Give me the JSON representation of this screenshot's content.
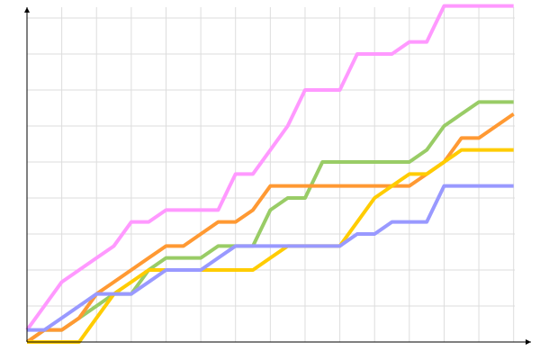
{
  "chart_data": {
    "type": "line",
    "x": [
      0,
      1,
      2,
      3,
      4,
      5,
      6,
      7,
      8,
      9,
      10,
      11,
      12,
      13,
      14,
      15,
      16,
      17,
      18,
      19,
      20,
      21,
      22,
      23,
      24,
      25,
      26,
      27,
      28
    ],
    "xlim": [
      0,
      29
    ],
    "ylim": [
      0,
      28.5
    ],
    "xgrid": [
      0,
      2,
      4,
      6,
      8,
      10,
      12,
      14,
      16,
      18,
      20,
      22,
      24,
      26,
      28
    ],
    "ygrid": [
      3,
      6,
      9,
      12,
      15,
      18,
      21,
      24,
      27
    ],
    "grid": true,
    "series": [
      {
        "color": "#ff99ff",
        "values": [
          1,
          3,
          5,
          6,
          7,
          8,
          10,
          10,
          11,
          11,
          11,
          11,
          14,
          14,
          16,
          18,
          21,
          21,
          21,
          24,
          24,
          24,
          25,
          25,
          28,
          28,
          28,
          28,
          28
        ]
      },
      {
        "color": "#99cc66",
        "values": [
          0,
          1,
          1,
          2,
          3,
          4,
          4,
          6,
          7,
          7,
          7,
          8,
          8,
          8,
          11,
          12,
          12,
          15,
          15,
          15,
          15,
          15,
          15,
          16,
          18,
          19,
          20,
          20,
          20
        ]
      },
      {
        "color": "#ff9933",
        "values": [
          0,
          1,
          1,
          2,
          4,
          5,
          6,
          7,
          8,
          8,
          9,
          10,
          10,
          11,
          13,
          13,
          13,
          13,
          13,
          13,
          13,
          13,
          13,
          14,
          15,
          17,
          17,
          18,
          19
        ]
      },
      {
        "color": "#ffcc00",
        "values": [
          0,
          0,
          0,
          0,
          2,
          4,
          5,
          6,
          6,
          6,
          6,
          6,
          6,
          6,
          7,
          8,
          8,
          8,
          8,
          10,
          12,
          13,
          14,
          14,
          15,
          16,
          16,
          16,
          16
        ]
      },
      {
        "color": "#9999ff",
        "values": [
          1,
          1,
          2,
          3,
          4,
          4,
          4,
          5,
          6,
          6,
          6,
          7,
          8,
          8,
          8,
          8,
          8,
          8,
          8,
          9,
          9,
          10,
          10,
          10,
          13,
          13,
          13,
          13,
          13
        ]
      }
    ]
  }
}
